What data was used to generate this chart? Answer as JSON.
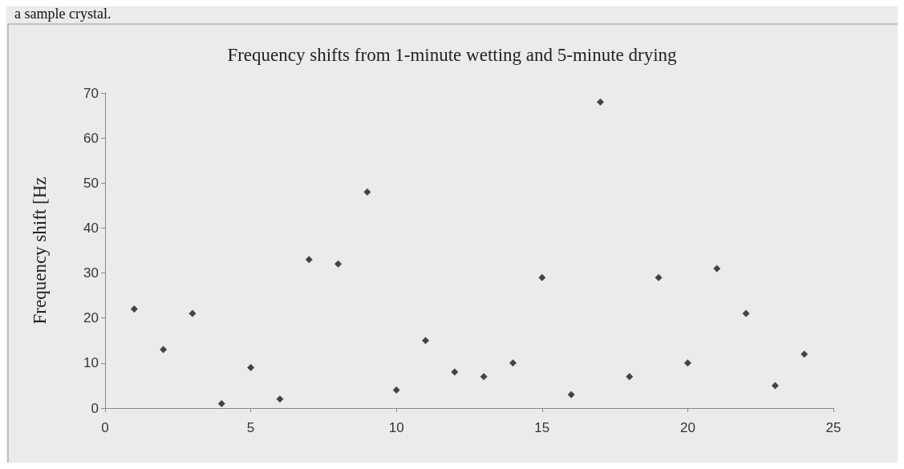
{
  "chart_data": {
    "type": "scatter",
    "title": "Frequency shifts from 1-minute wetting and 5-minute drying",
    "ylabel": "Frequency shift [Hz",
    "annotations": [
      "a sample crystal."
    ],
    "x": [
      1,
      2,
      3,
      4,
      5,
      6,
      7,
      8,
      9,
      10,
      11,
      12,
      13,
      14,
      15,
      16,
      17,
      18,
      19,
      20,
      21,
      22,
      23,
      24
    ],
    "values": [
      22,
      13,
      21,
      1,
      9,
      2,
      33,
      32,
      48,
      4,
      15,
      8,
      7,
      10,
      29,
      3,
      68,
      7,
      29,
      10,
      31,
      21,
      5,
      12
    ],
    "color": "#1a1a1a",
    "marker": "diamond",
    "xlim": [
      0,
      25
    ],
    "xticks": [
      0,
      5,
      10,
      15,
      20,
      25
    ],
    "ylim": [
      0,
      70
    ],
    "yticks": [
      0,
      10,
      20,
      30,
      40,
      50,
      60,
      70
    ],
    "grid": false
  }
}
